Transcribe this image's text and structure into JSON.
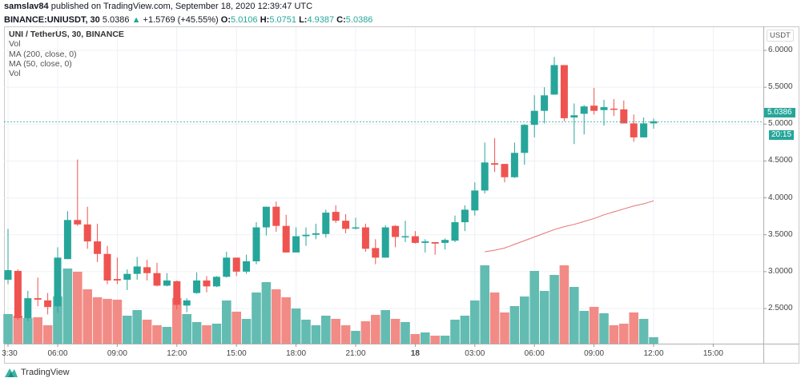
{
  "header": {
    "author": "samslav84",
    "published": " published on TradingView.com, September 18, 2020 12:39:47 UTC",
    "symbol": "BINANCE:UNIUSDT, 30",
    "price": "5.0386",
    "change_arrow": "▲",
    "change": "+1.5769 (+45.55%)",
    "o_label": "O:",
    "o": "5.0106",
    "h_label": "H:",
    "h": "5.0751",
    "l_label": "L:",
    "l": "4.9387",
    "c_label": "C:",
    "c": "5.0386"
  },
  "legend": {
    "title": "UNI / TetherUS, 30, BINANCE",
    "items": [
      "Vol",
      "MA (200, close, 0)",
      "MA (50, close, 0)",
      "Vol"
    ]
  },
  "price_axis": {
    "currency": "USDT",
    "current_price": "5.0386",
    "countdown": "20:15"
  },
  "footer": {
    "brand": "TradingView"
  },
  "colors": {
    "up": "#26a69a",
    "down": "#ef5350",
    "up_vol": "#63bcb2",
    "down_vol": "#f28b86",
    "ma": "#e57373",
    "grid": "#eef0f4"
  },
  "chart_data": {
    "type": "candlestick",
    "interval": "30m",
    "ylim": [
      2.1,
      6.15
    ],
    "y_ticks": [
      "6.0000",
      "5.5000",
      "5.0000",
      "4.5000",
      "4.0000",
      "3.5000",
      "3.0000",
      "2.5000"
    ],
    "x_tick_labels": [
      "3:30",
      "06:00",
      "09:00",
      "12:00",
      "15:00",
      "18:00",
      "21:00",
      "18",
      "03:00",
      "06:00",
      "09:00",
      "12:00",
      "15:00"
    ],
    "grid": true,
    "ohlc": [
      [
        2.89,
        3.58,
        2.83,
        3.02
      ],
      [
        3.01,
        3.03,
        2.35,
        2.37
      ],
      [
        2.37,
        2.74,
        2.33,
        2.64
      ],
      [
        2.64,
        2.92,
        2.53,
        2.62
      ],
      [
        2.61,
        2.71,
        2.42,
        2.52
      ],
      [
        2.53,
        3.33,
        2.44,
        3.19
      ],
      [
        3.17,
        3.82,
        3.17,
        3.7
      ],
      [
        3.7,
        4.52,
        3.62,
        3.64
      ],
      [
        3.64,
        3.88,
        3.31,
        3.41
      ],
      [
        3.41,
        3.65,
        3.13,
        3.24
      ],
      [
        3.24,
        3.35,
        2.83,
        2.88
      ],
      [
        2.9,
        3.19,
        2.83,
        2.88
      ],
      [
        2.89,
        3.03,
        2.75,
        2.97
      ],
      [
        2.97,
        3.2,
        2.89,
        3.07
      ],
      [
        3.06,
        3.16,
        2.88,
        2.98
      ],
      [
        2.98,
        3.12,
        2.8,
        2.81
      ],
      [
        2.81,
        2.98,
        2.8,
        2.88
      ],
      [
        2.87,
        2.88,
        2.49,
        2.55
      ],
      [
        2.54,
        2.64,
        2.45,
        2.61
      ],
      [
        2.71,
        2.99,
        2.7,
        2.88
      ],
      [
        2.88,
        2.94,
        2.72,
        2.8
      ],
      [
        2.8,
        2.94,
        2.79,
        2.93
      ],
      [
        2.93,
        3.27,
        2.92,
        3.19
      ],
      [
        3.19,
        3.19,
        2.94,
        3.0
      ],
      [
        3.0,
        3.23,
        2.97,
        3.14
      ],
      [
        3.14,
        3.67,
        3.1,
        3.6
      ],
      [
        3.6,
        3.88,
        3.49,
        3.88
      ],
      [
        3.88,
        3.95,
        3.54,
        3.62
      ],
      [
        3.62,
        3.77,
        3.26,
        3.26
      ],
      [
        3.26,
        3.6,
        3.26,
        3.48
      ],
      [
        3.48,
        3.6,
        3.35,
        3.5
      ],
      [
        3.5,
        3.65,
        3.44,
        3.52
      ],
      [
        3.51,
        3.84,
        3.46,
        3.8
      ],
      [
        3.81,
        3.9,
        3.66,
        3.69
      ],
      [
        3.69,
        3.78,
        3.52,
        3.58
      ],
      [
        3.59,
        3.73,
        3.57,
        3.6
      ],
      [
        3.6,
        3.65,
        3.27,
        3.31
      ],
      [
        3.32,
        3.44,
        3.1,
        3.19
      ],
      [
        3.19,
        3.63,
        3.19,
        3.6
      ],
      [
        3.62,
        3.63,
        3.33,
        3.47
      ],
      [
        3.47,
        3.69,
        3.4,
        3.48
      ],
      [
        3.48,
        3.55,
        3.38,
        3.39
      ],
      [
        3.39,
        3.44,
        3.26,
        3.41
      ],
      [
        3.4,
        3.4,
        3.23,
        3.38
      ],
      [
        3.39,
        3.45,
        3.3,
        3.43
      ],
      [
        3.42,
        3.76,
        3.4,
        3.67
      ],
      [
        3.67,
        3.9,
        3.55,
        3.84
      ],
      [
        3.83,
        4.21,
        3.76,
        4.1
      ],
      [
        4.1,
        4.75,
        4.06,
        4.48
      ],
      [
        4.47,
        4.81,
        4.35,
        4.45
      ],
      [
        4.46,
        4.46,
        4.21,
        4.28
      ],
      [
        4.28,
        4.75,
        4.27,
        4.61
      ],
      [
        4.61,
        5.0,
        4.45,
        4.99
      ],
      [
        4.99,
        5.39,
        4.82,
        5.18
      ],
      [
        5.18,
        5.5,
        5.01,
        5.39
      ],
      [
        5.4,
        5.91,
        5.4,
        5.8
      ],
      [
        5.8,
        5.8,
        5.04,
        5.08
      ],
      [
        5.09,
        5.28,
        4.73,
        5.12
      ],
      [
        5.14,
        5.26,
        4.86,
        5.24
      ],
      [
        5.25,
        5.49,
        5.13,
        5.18
      ],
      [
        5.19,
        5.33,
        4.98,
        5.23
      ],
      [
        5.21,
        5.34,
        5.11,
        5.2
      ],
      [
        5.2,
        5.32,
        5.01,
        5.01
      ],
      [
        5.01,
        5.13,
        4.76,
        4.82
      ],
      [
        4.82,
        5.09,
        4.82,
        5.01
      ],
      [
        5.0106,
        5.0751,
        4.9387,
        5.0386
      ]
    ],
    "volume_relative": [
      37,
      35,
      32,
      33,
      23,
      59,
      94,
      90,
      68,
      58,
      56,
      55,
      35,
      42,
      30,
      23,
      21,
      57,
      37,
      27,
      23,
      25,
      54,
      40,
      31,
      64,
      77,
      68,
      58,
      44,
      30,
      23,
      35,
      31,
      23,
      16,
      28,
      36,
      42,
      31,
      27,
      12,
      14,
      10,
      10,
      30,
      35,
      54,
      98,
      64,
      39,
      47,
      59,
      91,
      66,
      86,
      98,
      71,
      41,
      46,
      38,
      23,
      25,
      39,
      31,
      8
    ],
    "ma50_start_index": 48,
    "ma50": [
      3.27,
      3.29,
      3.32,
      3.37,
      3.42,
      3.47,
      3.52,
      3.57,
      3.61,
      3.64,
      3.68,
      3.72,
      3.77,
      3.81,
      3.85,
      3.89,
      3.92,
      3.96
    ]
  }
}
